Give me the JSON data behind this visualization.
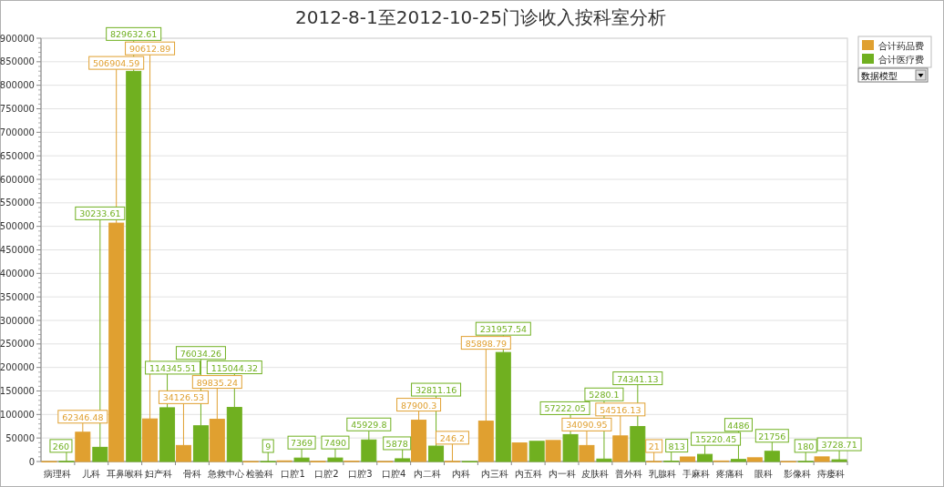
{
  "chart_data": {
    "type": "bar",
    "title": "2012-8-1至2012-10-25门诊收入按科室分析",
    "categories": [
      "病理科",
      "儿科",
      "耳鼻喉科",
      "妇产科",
      "骨科",
      "急救中心",
      "检验科",
      "口腔1",
      "口腔2",
      "口腔3",
      "口腔4",
      "内二科",
      "内科",
      "内三科",
      "内五科",
      "内一科",
      "皮肤科",
      "普外科",
      "乳腺科",
      "手麻科",
      "疼痛科",
      "眼科",
      "影像科",
      "痔瘘科"
    ],
    "series": [
      {
        "name": "合计药品费",
        "color": "#e0a030",
        "values": [
          0,
          62346.48,
          506904.59,
          90612.89,
          34126.53,
          89835.24,
          0,
          1400,
          300,
          900,
          0,
          87900.3,
          246.2,
          85898.79,
          39500,
          44800,
          34090.95,
          54516.13,
          21,
          9700,
          1200,
          8000,
          0,
          9900
        ],
        "value_labels": [
          null,
          "62346.48",
          "506904.59",
          "90612.89",
          "34126.53",
          "89835.24",
          null,
          null,
          null,
          null,
          null,
          "87900.3",
          "246.2",
          "85898.79",
          null,
          null,
          "34090.95",
          "54516.13",
          "21",
          null,
          null,
          null,
          null,
          null
        ]
      },
      {
        "name": "合计医疗费",
        "color": "#70b020",
        "values": [
          260,
          30233.61,
          829632.61,
          114345.51,
          76034.26,
          115044.32,
          9,
          7369,
          7490,
          45929.8,
          5878,
          32811.16,
          0,
          231957.54,
          43000,
          57222.05,
          5280.1,
          74341.13,
          813,
          15220.45,
          4486,
          21756,
          180,
          3728.71
        ],
        "value_labels": [
          "260",
          "30233.61",
          "829632.61",
          "114345.51",
          "76034.26",
          "115044.32",
          "9",
          "7369",
          "7490",
          "45929.8",
          "5878",
          "32811.16",
          null,
          "231957.54",
          null,
          "57222.05",
          "5280.1",
          "74341.13",
          "813",
          "15220.45",
          "4486",
          "21756",
          "180",
          "3728.71"
        ]
      }
    ],
    "ylim": [
      0,
      900000
    ],
    "yticks": [
      0,
      50000,
      100000,
      150000,
      200000,
      250000,
      300000,
      350000,
      400000,
      450000,
      500000,
      550000,
      600000,
      650000,
      700000,
      750000,
      800000,
      850000,
      900000
    ],
    "grid": "y",
    "legend": "top right",
    "annotations": [
      "数据模型"
    ]
  }
}
